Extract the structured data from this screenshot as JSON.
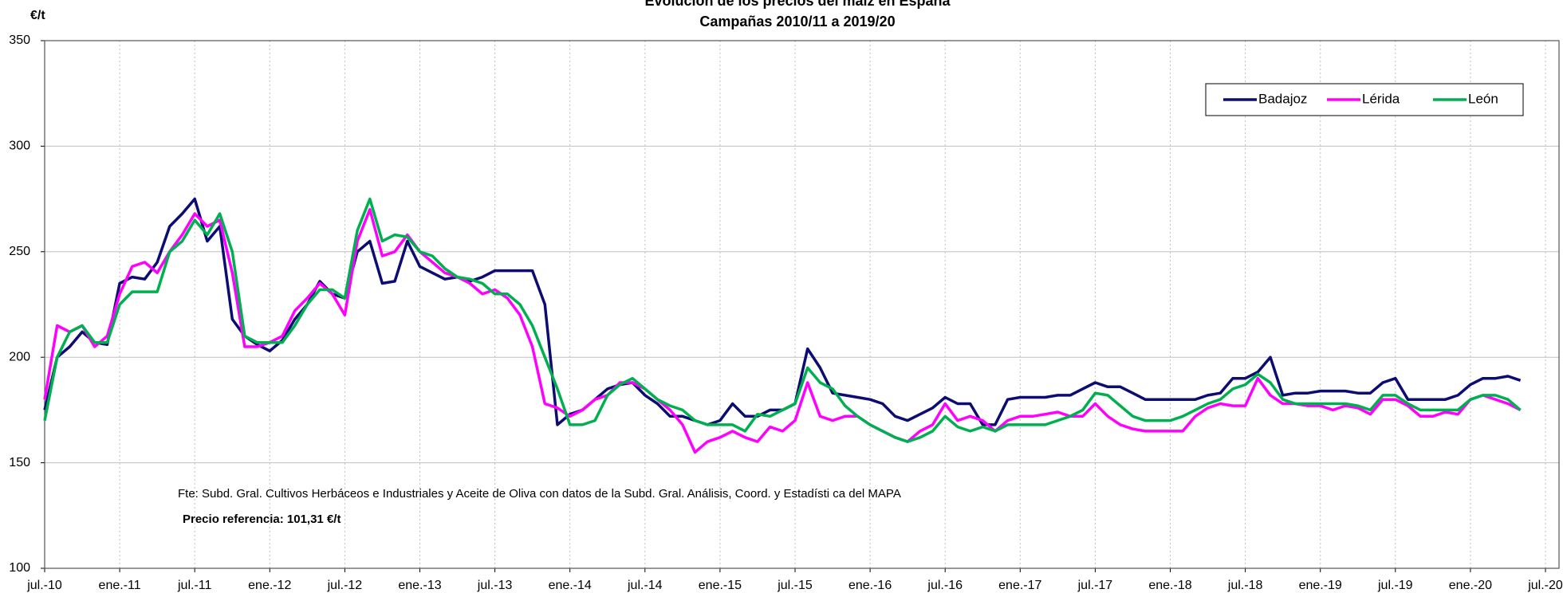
{
  "chart_data": {
    "type": "line",
    "title": "Evolución de los precios del maíz en España",
    "subtitle": "Campañas 2010/11 a 2019/20",
    "y_label": "€/t",
    "annotations": [
      "Fte: Subd. Gral. Cultivos Herbáceos e Industriales y Aceite de Oliva con datos de la Subd. Gral. Análisis, Coord. y Estadísti ca del MAPA",
      "Precio referencia: 101,31 €/t"
    ],
    "x": [
      "2010-07",
      "2010-08",
      "2010-09",
      "2010-10",
      "2010-11",
      "2010-12",
      "2011-01",
      "2011-02",
      "2011-03",
      "2011-04",
      "2011-05",
      "2011-06",
      "2011-07",
      "2011-08",
      "2011-09",
      "2011-10",
      "2011-11",
      "2011-12",
      "2012-01",
      "2012-02",
      "2012-03",
      "2012-04",
      "2012-05",
      "2012-06",
      "2012-07",
      "2012-08",
      "2012-09",
      "2012-10",
      "2012-11",
      "2012-12",
      "2013-01",
      "2013-02",
      "2013-03",
      "2013-04",
      "2013-05",
      "2013-06",
      "2013-07",
      "2013-08",
      "2013-09",
      "2013-10",
      "2013-11",
      "2013-12",
      "2014-01",
      "2014-02",
      "2014-03",
      "2014-04",
      "2014-05",
      "2014-06",
      "2014-07",
      "2014-08",
      "2014-09",
      "2014-10",
      "2014-11",
      "2014-12",
      "2015-01",
      "2015-02",
      "2015-03",
      "2015-04",
      "2015-05",
      "2015-06",
      "2015-07",
      "2015-08",
      "2015-09",
      "2015-10",
      "2015-11",
      "2015-12",
      "2016-01",
      "2016-02",
      "2016-03",
      "2016-04",
      "2016-05",
      "2016-06",
      "2016-07",
      "2016-08",
      "2016-09",
      "2016-10",
      "2016-11",
      "2016-12",
      "2017-01",
      "2017-02",
      "2017-03",
      "2017-04",
      "2017-05",
      "2017-06",
      "2017-07",
      "2017-08",
      "2017-09",
      "2017-10",
      "2017-11",
      "2017-12",
      "2018-01",
      "2018-02",
      "2018-03",
      "2018-04",
      "2018-05",
      "2018-06",
      "2018-07",
      "2018-08",
      "2018-09",
      "2018-10",
      "2018-11",
      "2018-12",
      "2019-01",
      "2019-02",
      "2019-03",
      "2019-04",
      "2019-05",
      "2019-06",
      "2019-07",
      "2019-08",
      "2019-09",
      "2019-10",
      "2019-11",
      "2019-12",
      "2020-01",
      "2020-02",
      "2020-03",
      "2020-04",
      "2020-05"
    ],
    "series": [
      {
        "name": "Badajoz",
        "color": "#0c0c72",
        "values": [
          175,
          200,
          205,
          212,
          207,
          206,
          235,
          238,
          237,
          245,
          262,
          268,
          275,
          255,
          262,
          218,
          210,
          206,
          203,
          208,
          218,
          225,
          236,
          230,
          228,
          250,
          255,
          235,
          236,
          255,
          243,
          240,
          237,
          238,
          236,
          238,
          241,
          241,
          241,
          241,
          225,
          168,
          173,
          175,
          180,
          185,
          187,
          188,
          182,
          178,
          172,
          172,
          170,
          168,
          170,
          178,
          172,
          172,
          175,
          175,
          178,
          204,
          195,
          183,
          182,
          181,
          180,
          178,
          172,
          170,
          173,
          176,
          181,
          178,
          178,
          168,
          168,
          180,
          181,
          181,
          181,
          182,
          182,
          185,
          188,
          186,
          186,
          183,
          180,
          180,
          180,
          180,
          180,
          182,
          183,
          190,
          190,
          193,
          200,
          182,
          183,
          183,
          184,
          184,
          184,
          183,
          183,
          188,
          190,
          180,
          180,
          180,
          180,
          182,
          187,
          190,
          190,
          191,
          189
        ]
      },
      {
        "name": "Lérida",
        "color": "#ff00ff",
        "values": [
          180,
          215,
          212,
          215,
          205,
          210,
          230,
          243,
          245,
          240,
          250,
          258,
          268,
          262,
          265,
          240,
          205,
          205,
          207,
          210,
          222,
          228,
          235,
          230,
          220,
          255,
          270,
          248,
          250,
          258,
          250,
          245,
          240,
          238,
          235,
          230,
          232,
          228,
          220,
          205,
          178,
          176,
          172,
          175,
          180,
          182,
          188,
          188,
          185,
          180,
          175,
          168,
          155,
          160,
          162,
          165,
          162,
          160,
          167,
          165,
          170,
          188,
          172,
          170,
          172,
          172,
          168,
          165,
          162,
          160,
          165,
          168,
          178,
          170,
          172,
          170,
          165,
          170,
          172,
          172,
          173,
          174,
          172,
          172,
          178,
          172,
          168,
          166,
          165,
          165,
          165,
          165,
          172,
          176,
          178,
          177,
          177,
          190,
          182,
          178,
          178,
          177,
          177,
          175,
          177,
          176,
          173,
          180,
          180,
          177,
          172,
          172,
          174,
          173,
          180,
          182,
          180,
          178,
          175
        ]
      },
      {
        "name": "León",
        "color": "#00b050",
        "values": [
          170,
          200,
          212,
          215,
          207,
          207,
          225,
          231,
          231,
          231,
          250,
          255,
          265,
          258,
          268,
          250,
          210,
          207,
          207,
          207,
          215,
          225,
          232,
          232,
          228,
          260,
          275,
          255,
          258,
          257,
          250,
          248,
          242,
          238,
          237,
          235,
          230,
          230,
          225,
          215,
          200,
          185,
          168,
          168,
          170,
          182,
          187,
          190,
          185,
          180,
          177,
          175,
          170,
          168,
          168,
          168,
          165,
          173,
          172,
          175,
          178,
          195,
          188,
          185,
          177,
          172,
          168,
          165,
          162,
          160,
          162,
          165,
          172,
          167,
          165,
          167,
          165,
          168,
          168,
          168,
          168,
          170,
          172,
          175,
          183,
          182,
          177,
          172,
          170,
          170,
          170,
          172,
          175,
          178,
          180,
          185,
          187,
          192,
          188,
          180,
          178,
          178,
          178,
          178,
          178,
          177,
          175,
          182,
          182,
          178,
          175,
          175,
          175,
          175,
          180,
          182,
          182,
          180,
          175
        ]
      }
    ],
    "xlim": [
      "2010-07",
      "2020-07"
    ],
    "xticks": [
      {
        "value": "2010-07",
        "label": "jul.-10"
      },
      {
        "value": "2011-01",
        "label": "ene.-11"
      },
      {
        "value": "2011-07",
        "label": "jul.-11"
      },
      {
        "value": "2012-01",
        "label": "ene.-12"
      },
      {
        "value": "2012-07",
        "label": "jul.-12"
      },
      {
        "value": "2013-01",
        "label": "ene.-13"
      },
      {
        "value": "2013-07",
        "label": "jul.-13"
      },
      {
        "value": "2014-01",
        "label": "ene.-14"
      },
      {
        "value": "2014-07",
        "label": "jul.-14"
      },
      {
        "value": "2015-01",
        "label": "ene.-15"
      },
      {
        "value": "2015-07",
        "label": "jul.-15"
      },
      {
        "value": "2016-01",
        "label": "ene.-16"
      },
      {
        "value": "2016-07",
        "label": "jul.-16"
      },
      {
        "value": "2017-01",
        "label": "ene.-17"
      },
      {
        "value": "2017-07",
        "label": "jul.-17"
      },
      {
        "value": "2018-01",
        "label": "ene.-18"
      },
      {
        "value": "2018-07",
        "label": "jul.-18"
      },
      {
        "value": "2019-01",
        "label": "ene.-19"
      },
      {
        "value": "2019-07",
        "label": "jul.-19"
      },
      {
        "value": "2020-01",
        "label": "ene.-20"
      },
      {
        "value": "2020-07",
        "label": "jul.-20"
      }
    ],
    "ylim": [
      100,
      350
    ],
    "yticks": [
      100,
      150,
      200,
      250,
      300,
      350
    ],
    "grid": true,
    "legend": "upper right"
  }
}
